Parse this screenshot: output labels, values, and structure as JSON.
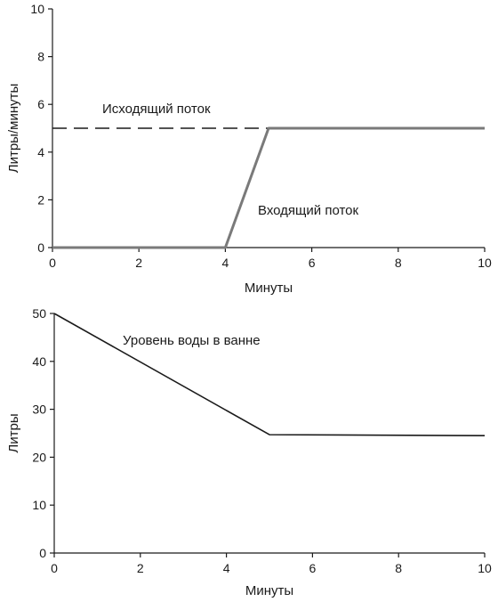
{
  "chart_data": [
    {
      "type": "line",
      "xlabel": "Минуты",
      "ylabel": "Литры/минуты",
      "xlim": [
        0,
        10
      ],
      "ylim": [
        0,
        10
      ],
      "xticks": [
        0,
        2,
        4,
        6,
        8,
        10
      ],
      "yticks": [
        0,
        2,
        4,
        6,
        8,
        10
      ],
      "grid": false,
      "series": [
        {
          "name": "Исходящий поток",
          "x": [
            0,
            10
          ],
          "y": [
            5,
            5
          ],
          "color": "#1a1a1a",
          "dash": "dashed"
        },
        {
          "name": "Входящий поток",
          "x": [
            0,
            4,
            5,
            10
          ],
          "y": [
            0,
            0,
            5,
            5
          ],
          "color": "#7a7a7a",
          "dash": "solid"
        }
      ]
    },
    {
      "type": "line",
      "xlabel": "Минуты",
      "ylabel": "Литры",
      "xlim": [
        0,
        10
      ],
      "ylim": [
        0,
        50
      ],
      "xticks": [
        0,
        2,
        4,
        6,
        8,
        10
      ],
      "yticks": [
        0,
        10,
        20,
        30,
        40,
        50
      ],
      "grid": false,
      "series": [
        {
          "name": "Уровень воды в ванне",
          "x": [
            0,
            5,
            10
          ],
          "y": [
            50,
            24.7,
            24.5
          ],
          "color": "#1a1a1a",
          "dash": "solid"
        }
      ]
    }
  ]
}
